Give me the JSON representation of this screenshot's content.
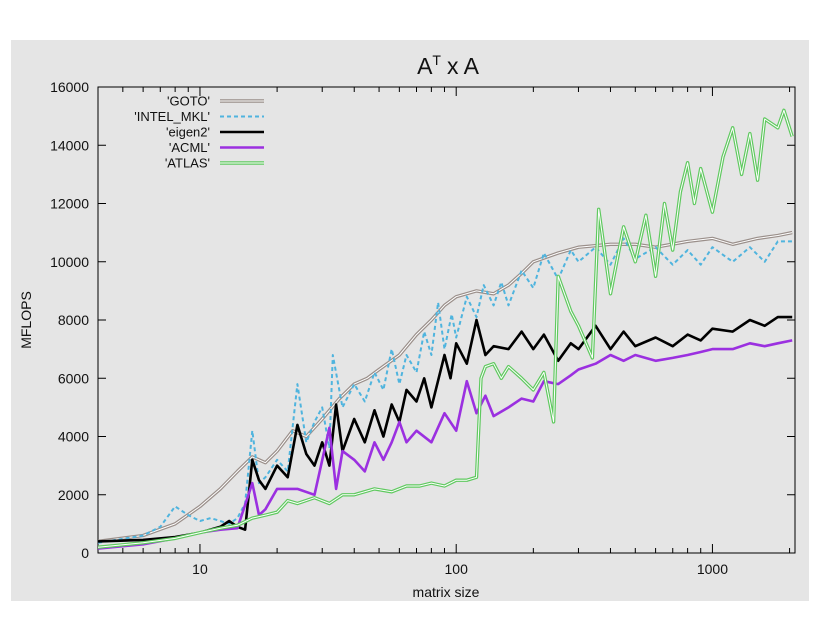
{
  "chart_data": {
    "type": "line",
    "title": "A",
    "title_superscript": "T",
    "title_rest": "x A",
    "xlabel": "matrix size",
    "ylabel": "MFLOPS",
    "xscale": "log",
    "xlim": [
      4,
      2100
    ],
    "ylim": [
      0,
      16000
    ],
    "xticks": [
      10,
      100,
      1000
    ],
    "xtick_labels": [
      "10",
      "100",
      "1000"
    ],
    "yticks": [
      0,
      2000,
      4000,
      6000,
      8000,
      10000,
      12000,
      14000,
      16000
    ],
    "ytick_labels": [
      "0",
      "2000",
      "4000",
      "6000",
      "8000",
      "10000",
      "12000",
      "14000",
      "16000"
    ],
    "legend_position": "top-left",
    "background": "#e5e5e5",
    "series": [
      {
        "name": "'GOTO'",
        "color": "#9a8f8a",
        "style": "double",
        "points": [
          [
            4,
            400
          ],
          [
            6,
            600
          ],
          [
            8,
            1000
          ],
          [
            10,
            1600
          ],
          [
            12,
            2200
          ],
          [
            14,
            2800
          ],
          [
            16,
            3300
          ],
          [
            18,
            3100
          ],
          [
            20,
            3500
          ],
          [
            23,
            4200
          ],
          [
            26,
            4000
          ],
          [
            30,
            4600
          ],
          [
            35,
            5300
          ],
          [
            40,
            5800
          ],
          [
            45,
            6000
          ],
          [
            50,
            6300
          ],
          [
            60,
            6800
          ],
          [
            70,
            7500
          ],
          [
            80,
            8000
          ],
          [
            90,
            8500
          ],
          [
            100,
            8800
          ],
          [
            120,
            9000
          ],
          [
            140,
            8900
          ],
          [
            160,
            9200
          ],
          [
            180,
            9600
          ],
          [
            200,
            10000
          ],
          [
            250,
            10300
          ],
          [
            300,
            10500
          ],
          [
            400,
            10600
          ],
          [
            500,
            10600
          ],
          [
            600,
            10500
          ],
          [
            800,
            10700
          ],
          [
            1000,
            10800
          ],
          [
            1200,
            10600
          ],
          [
            1500,
            10800
          ],
          [
            1800,
            10900
          ],
          [
            2048,
            11000
          ]
        ]
      },
      {
        "name": "'INTEL_MKL'",
        "color": "#4fb4de",
        "style": "dashed",
        "points": [
          [
            4,
            350
          ],
          [
            6,
            600
          ],
          [
            7,
            900
          ],
          [
            8,
            1600
          ],
          [
            9,
            1300
          ],
          [
            10,
            1100
          ],
          [
            11,
            1200
          ],
          [
            12,
            1100
          ],
          [
            13,
            1000
          ],
          [
            14,
            1200
          ],
          [
            15,
            1700
          ],
          [
            16,
            4200
          ],
          [
            17,
            2400
          ],
          [
            18,
            2600
          ],
          [
            20,
            3200
          ],
          [
            22,
            2800
          ],
          [
            24,
            5800
          ],
          [
            26,
            3800
          ],
          [
            28,
            4500
          ],
          [
            30,
            5000
          ],
          [
            32,
            3600
          ],
          [
            33,
            6800
          ],
          [
            36,
            5000
          ],
          [
            40,
            5800
          ],
          [
            44,
            5200
          ],
          [
            48,
            6200
          ],
          [
            52,
            5600
          ],
          [
            56,
            7000
          ],
          [
            60,
            5800
          ],
          [
            64,
            6800
          ],
          [
            70,
            6200
          ],
          [
            75,
            7600
          ],
          [
            80,
            6800
          ],
          [
            85,
            8600
          ],
          [
            90,
            7000
          ],
          [
            96,
            8200
          ],
          [
            100,
            7400
          ],
          [
            110,
            8800
          ],
          [
            120,
            8100
          ],
          [
            128,
            9200
          ],
          [
            140,
            8500
          ],
          [
            150,
            9300
          ],
          [
            160,
            8500
          ],
          [
            180,
            9700
          ],
          [
            200,
            9100
          ],
          [
            220,
            10300
          ],
          [
            250,
            9400
          ],
          [
            280,
            10400
          ],
          [
            300,
            10000
          ],
          [
            350,
            10500
          ],
          [
            400,
            9900
          ],
          [
            450,
            10800
          ],
          [
            500,
            10100
          ],
          [
            600,
            10500
          ],
          [
            700,
            9900
          ],
          [
            800,
            10400
          ],
          [
            900,
            9900
          ],
          [
            1000,
            10500
          ],
          [
            1200,
            10000
          ],
          [
            1400,
            10500
          ],
          [
            1600,
            10000
          ],
          [
            1800,
            10700
          ],
          [
            2048,
            10700
          ]
        ]
      },
      {
        "name": "'eigen2'",
        "color": "#000000",
        "style": "solid",
        "points": [
          [
            4,
            400
          ],
          [
            6,
            450
          ],
          [
            8,
            550
          ],
          [
            10,
            700
          ],
          [
            12,
            900
          ],
          [
            13,
            1100
          ],
          [
            14,
            900
          ],
          [
            15,
            800
          ],
          [
            16,
            3200
          ],
          [
            17,
            2500
          ],
          [
            18,
            2200
          ],
          [
            20,
            3000
          ],
          [
            22,
            2600
          ],
          [
            24,
            4400
          ],
          [
            26,
            3400
          ],
          [
            28,
            3000
          ],
          [
            30,
            3800
          ],
          [
            32,
            3000
          ],
          [
            34,
            5100
          ],
          [
            36,
            3500
          ],
          [
            40,
            4600
          ],
          [
            44,
            3800
          ],
          [
            48,
            4900
          ],
          [
            52,
            4000
          ],
          [
            56,
            5100
          ],
          [
            60,
            4500
          ],
          [
            64,
            5600
          ],
          [
            70,
            5200
          ],
          [
            75,
            6000
          ],
          [
            80,
            5000
          ],
          [
            90,
            6800
          ],
          [
            95,
            6000
          ],
          [
            100,
            7200
          ],
          [
            110,
            6500
          ],
          [
            120,
            8000
          ],
          [
            130,
            6800
          ],
          [
            140,
            7100
          ],
          [
            160,
            7000
          ],
          [
            180,
            7600
          ],
          [
            200,
            7000
          ],
          [
            220,
            7500
          ],
          [
            250,
            6600
          ],
          [
            280,
            7200
          ],
          [
            300,
            7000
          ],
          [
            350,
            7800
          ],
          [
            400,
            7000
          ],
          [
            450,
            7600
          ],
          [
            500,
            7100
          ],
          [
            600,
            7400
          ],
          [
            700,
            7100
          ],
          [
            800,
            7500
          ],
          [
            900,
            7300
          ],
          [
            1000,
            7700
          ],
          [
            1200,
            7600
          ],
          [
            1400,
            8000
          ],
          [
            1600,
            7800
          ],
          [
            1800,
            8100
          ],
          [
            2048,
            8100
          ]
        ]
      },
      {
        "name": "'ACML'",
        "color": "#9b30e0",
        "style": "solid",
        "points": [
          [
            4,
            150
          ],
          [
            6,
            300
          ],
          [
            8,
            500
          ],
          [
            10,
            700
          ],
          [
            12,
            800
          ],
          [
            14,
            850
          ],
          [
            16,
            2400
          ],
          [
            17,
            1300
          ],
          [
            18,
            1500
          ],
          [
            20,
            2200
          ],
          [
            24,
            2200
          ],
          [
            28,
            2000
          ],
          [
            32,
            4300
          ],
          [
            34,
            2200
          ],
          [
            36,
            3500
          ],
          [
            40,
            3200
          ],
          [
            44,
            2800
          ],
          [
            48,
            3800
          ],
          [
            52,
            3200
          ],
          [
            56,
            3800
          ],
          [
            60,
            4500
          ],
          [
            64,
            3800
          ],
          [
            70,
            4200
          ],
          [
            80,
            3800
          ],
          [
            90,
            4800
          ],
          [
            100,
            4200
          ],
          [
            110,
            5900
          ],
          [
            120,
            4800
          ],
          [
            130,
            5400
          ],
          [
            140,
            4700
          ],
          [
            160,
            5000
          ],
          [
            180,
            5300
          ],
          [
            200,
            5200
          ],
          [
            220,
            5900
          ],
          [
            250,
            5800
          ],
          [
            280,
            6100
          ],
          [
            300,
            6300
          ],
          [
            350,
            6500
          ],
          [
            400,
            6800
          ],
          [
            450,
            6600
          ],
          [
            500,
            6800
          ],
          [
            600,
            6600
          ],
          [
            700,
            6700
          ],
          [
            800,
            6800
          ],
          [
            900,
            6900
          ],
          [
            1000,
            7000
          ],
          [
            1200,
            7000
          ],
          [
            1400,
            7200
          ],
          [
            1600,
            7100
          ],
          [
            1800,
            7200
          ],
          [
            2048,
            7300
          ]
        ]
      },
      {
        "name": "'ATLAS'",
        "color": "#5fc95f",
        "style": "double",
        "points": [
          [
            4,
            200
          ],
          [
            6,
            350
          ],
          [
            8,
            500
          ],
          [
            10,
            700
          ],
          [
            12,
            850
          ],
          [
            14,
            950
          ],
          [
            16,
            1200
          ],
          [
            18,
            1300
          ],
          [
            20,
            1400
          ],
          [
            22,
            1800
          ],
          [
            24,
            1700
          ],
          [
            28,
            1900
          ],
          [
            32,
            1700
          ],
          [
            36,
            2000
          ],
          [
            40,
            2000
          ],
          [
            48,
            2200
          ],
          [
            56,
            2100
          ],
          [
            64,
            2300
          ],
          [
            72,
            2300
          ],
          [
            80,
            2400
          ],
          [
            90,
            2300
          ],
          [
            100,
            2500
          ],
          [
            110,
            2500
          ],
          [
            120,
            2600
          ],
          [
            125,
            6000
          ],
          [
            130,
            6400
          ],
          [
            140,
            6500
          ],
          [
            150,
            6000
          ],
          [
            160,
            6400
          ],
          [
            180,
            6000
          ],
          [
            200,
            5600
          ],
          [
            220,
            6200
          ],
          [
            240,
            4500
          ],
          [
            250,
            9500
          ],
          [
            280,
            8300
          ],
          [
            300,
            7800
          ],
          [
            340,
            6700
          ],
          [
            360,
            11800
          ],
          [
            400,
            8900
          ],
          [
            450,
            11200
          ],
          [
            500,
            10000
          ],
          [
            550,
            11600
          ],
          [
            600,
            9500
          ],
          [
            650,
            12000
          ],
          [
            700,
            10400
          ],
          [
            750,
            12400
          ],
          [
            800,
            13400
          ],
          [
            850,
            12000
          ],
          [
            900,
            13200
          ],
          [
            1000,
            11700
          ],
          [
            1100,
            13600
          ],
          [
            1200,
            14600
          ],
          [
            1300,
            13000
          ],
          [
            1400,
            14400
          ],
          [
            1500,
            12800
          ],
          [
            1600,
            14900
          ],
          [
            1800,
            14600
          ],
          [
            1900,
            15200
          ],
          [
            2048,
            14300
          ]
        ]
      }
    ]
  }
}
